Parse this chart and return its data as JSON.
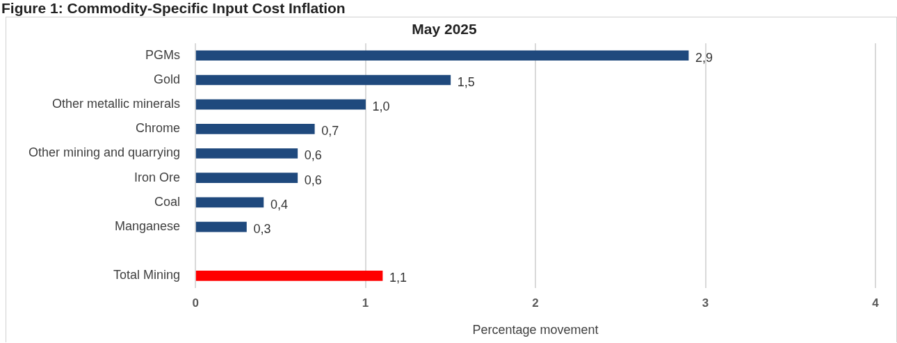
{
  "chart_data": {
    "type": "bar",
    "orientation": "horizontal",
    "title": "Figure 1: Commodity-Specific Input Cost Inflation",
    "subtitle": "May 2025",
    "xlabel": "Percentage movement",
    "categories": [
      "PGMs",
      "Gold",
      "Other metallic minerals",
      "Chrome",
      "Other mining and quarrying",
      "Iron Ore",
      "Coal",
      "Manganese",
      null,
      "Total Mining"
    ],
    "values": [
      2.9,
      1.5,
      1.0,
      0.7,
      0.6,
      0.6,
      0.4,
      0.3,
      null,
      1.1
    ],
    "colors": [
      "#1f497d",
      "#1f497d",
      "#1f497d",
      "#1f497d",
      "#1f497d",
      "#1f497d",
      "#1f497d",
      "#1f497d",
      "#1f497d",
      "#ff0000"
    ],
    "value_labels": [
      "2,9",
      "1,5",
      "1,0",
      "0,7",
      "0,6",
      "0,6",
      "0,4",
      "0,3",
      null,
      "1,1"
    ],
    "xlim": [
      0,
      4
    ],
    "xticks": [
      0,
      1,
      2,
      3,
      4
    ],
    "grid": "x",
    "legend": false
  }
}
